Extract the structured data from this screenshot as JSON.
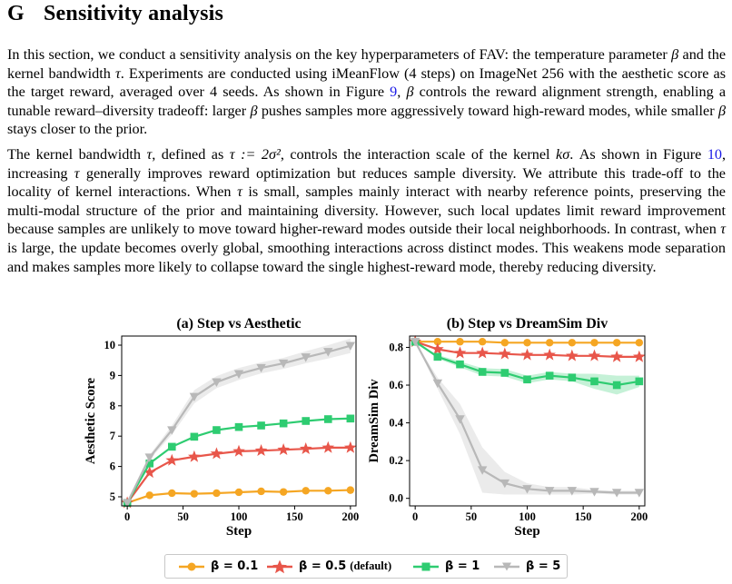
{
  "section": {
    "number": "G",
    "title": "Sensitivity analysis"
  },
  "paragraph1": {
    "s1": "In this section, we conduct a sensitivity analysis on the key hyperparameters of FAV: the temperature parameter",
    "s2": "and the kernel bandwidth",
    "s3": ". Experiments are conducted using iMeanFlow (4 steps) on ImageNet 256 with the aesthetic score as the target reward, averaged over 4 seeds. As shown in Figure",
    "fig_ref": "9",
    "s4": ",",
    "s5": "controls the reward alignment strength, enabling a tunable reward–diversity tradeoff: larger",
    "s6": "pushes samples more aggressively toward high-reward modes, while smaller",
    "s7": "stays closer to the prior."
  },
  "paragraph2": {
    "s1": "The kernel bandwidth",
    "s2": ", defined as",
    "formula": "τ := 2σ²",
    "s3": ", controls the interaction scale of the kernel",
    "kernel": "kσ",
    "s4": ". As shown in Figure",
    "fig_ref": "10",
    "s5": ", increasing",
    "s6": "generally improves reward optimization but reduces sample diversity. We attribute this trade-off to the locality of kernel interactions. When",
    "s7": "is small, samples mainly interact with nearby reference points, preserving the multi-modal structure of the prior and maintaining diversity. However, such local updates limit reward improvement because samples are unlikely to move toward higher-reward modes outside their local neighborhoods. In contrast, when",
    "s8": "is large, the update becomes overly global, smoothing interactions across distinct modes. This weakens mode separation and makes samples more likely to collapse toward the single highest-reward mode, thereby reducing diversity."
  },
  "symbols": {
    "beta": "β",
    "tau": "τ"
  },
  "chart_data": [
    {
      "type": "line",
      "title": "(a) Step vs Aesthetic",
      "xlabel": "Step",
      "ylabel": "Aesthetic Score",
      "xlim": [
        -5,
        205
      ],
      "ylim": [
        4.7,
        10.3
      ],
      "xticks": [
        0,
        50,
        100,
        150,
        200
      ],
      "yticks": [
        5,
        6,
        7,
        8,
        9,
        10
      ],
      "grid": false,
      "x": [
        0,
        20,
        40,
        60,
        80,
        100,
        120,
        140,
        160,
        180,
        200
      ],
      "series": [
        {
          "name": "β = 0.1",
          "color": "#f5a623",
          "marker": "circle",
          "values": [
            4.8,
            5.05,
            5.12,
            5.1,
            5.12,
            5.15,
            5.18,
            5.16,
            5.2,
            5.2,
            5.22
          ]
        },
        {
          "name": "β = 0.5",
          "color": "#e8564a",
          "marker": "star",
          "values": [
            4.8,
            5.8,
            6.2,
            6.32,
            6.42,
            6.5,
            6.52,
            6.55,
            6.58,
            6.62,
            6.62
          ]
        },
        {
          "name": "β = 1",
          "color": "#2ecc71",
          "marker": "square",
          "values": [
            4.8,
            6.1,
            6.65,
            6.98,
            7.2,
            7.3,
            7.35,
            7.42,
            7.5,
            7.56,
            7.58
          ]
        },
        {
          "name": "β = 5",
          "color": "#b8b8b8",
          "marker": "triangle-down",
          "values": [
            4.8,
            6.3,
            7.2,
            8.3,
            8.78,
            9.05,
            9.25,
            9.4,
            9.6,
            9.78,
            9.98
          ]
        }
      ]
    },
    {
      "type": "line",
      "title": "(b) Step vs DreamSim Div",
      "xlabel": "Step",
      "ylabel": "DreamSim Div",
      "xlim": [
        -5,
        205
      ],
      "ylim": [
        -0.04,
        0.86
      ],
      "xticks": [
        0,
        50,
        100,
        150,
        200
      ],
      "yticks": [
        0.0,
        0.2,
        0.4,
        0.6,
        0.8
      ],
      "ytick_labels": [
        "0.0",
        "0.2",
        "0.4",
        "0.6",
        "0.8"
      ],
      "grid": false,
      "x": [
        0,
        20,
        40,
        60,
        80,
        100,
        120,
        140,
        160,
        180,
        200
      ],
      "series": [
        {
          "name": "β = 0.1",
          "color": "#f5a623",
          "marker": "circle",
          "values": [
            0.83,
            0.83,
            0.83,
            0.83,
            0.825,
            0.825,
            0.825,
            0.825,
            0.825,
            0.825,
            0.825
          ]
        },
        {
          "name": "β = 0.5",
          "color": "#e8564a",
          "marker": "star",
          "values": [
            0.83,
            0.79,
            0.77,
            0.77,
            0.765,
            0.76,
            0.76,
            0.755,
            0.755,
            0.75,
            0.75
          ]
        },
        {
          "name": "β = 1",
          "color": "#2ecc71",
          "marker": "square",
          "values": [
            0.83,
            0.75,
            0.71,
            0.67,
            0.665,
            0.63,
            0.65,
            0.64,
            0.62,
            0.6,
            0.62
          ]
        },
        {
          "name": "β = 5",
          "color": "#b8b8b8",
          "marker": "triangle-down",
          "values": [
            0.83,
            0.61,
            0.42,
            0.15,
            0.08,
            0.05,
            0.04,
            0.04,
            0.035,
            0.03,
            0.03
          ]
        }
      ]
    }
  ],
  "legend": {
    "placement": "bottom-center",
    "items": [
      {
        "label": "β = 0.1",
        "suffix": "",
        "color": "#f5a623",
        "marker": "circle"
      },
      {
        "label": "β = 0.5",
        "suffix": "(default)",
        "color": "#e8564a",
        "marker": "star"
      },
      {
        "label": "β = 1",
        "suffix": "",
        "color": "#2ecc71",
        "marker": "square"
      },
      {
        "label": "β = 5",
        "suffix": "",
        "color": "#b8b8b8",
        "marker": "triangle-down"
      }
    ]
  }
}
